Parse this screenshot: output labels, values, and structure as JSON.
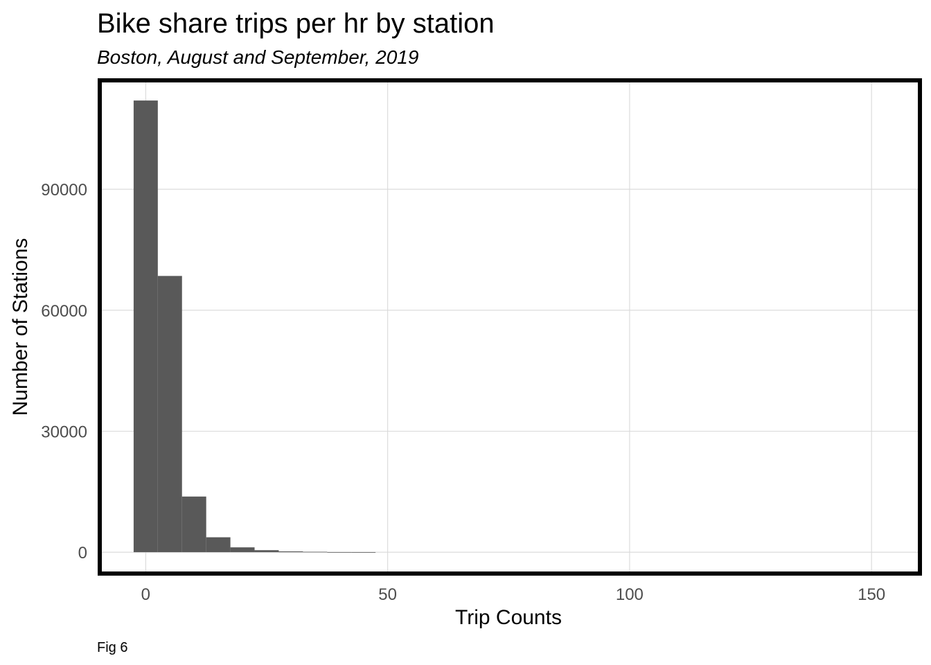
{
  "chart_data": {
    "type": "bar",
    "title": "Bike share trips per hr by station",
    "subtitle": "Boston, August and September, 2019",
    "caption": "Fig 6",
    "xlabel": "Trip Counts",
    "ylabel": "Number of Stations",
    "xlim": [
      -9.5,
      160
    ],
    "ylim": [
      -5300,
      117000
    ],
    "x_ticks": [
      0,
      50,
      100,
      150
    ],
    "y_ticks": [
      0,
      30000,
      60000,
      90000
    ],
    "grid": true,
    "bin_width": 5,
    "bins": [
      {
        "x0": -2.5,
        "x1": 2.5,
        "count": 112000
      },
      {
        "x0": 2.5,
        "x1": 7.5,
        "count": 68500
      },
      {
        "x0": 7.5,
        "x1": 12.5,
        "count": 13800
      },
      {
        "x0": 12.5,
        "x1": 17.5,
        "count": 3700
      },
      {
        "x0": 17.5,
        "x1": 22.5,
        "count": 1200
      },
      {
        "x0": 22.5,
        "x1": 27.5,
        "count": 500
      },
      {
        "x0": 27.5,
        "x1": 32.5,
        "count": 200
      },
      {
        "x0": 32.5,
        "x1": 37.5,
        "count": 100
      },
      {
        "x0": 37.5,
        "x1": 42.5,
        "count": 30
      },
      {
        "x0": 42.5,
        "x1": 47.5,
        "count": 10
      }
    ],
    "colors": {
      "bar": "#595959",
      "grid": "#d9d9d9",
      "border": "#000000",
      "tick_text": "#4d4d4d"
    }
  }
}
